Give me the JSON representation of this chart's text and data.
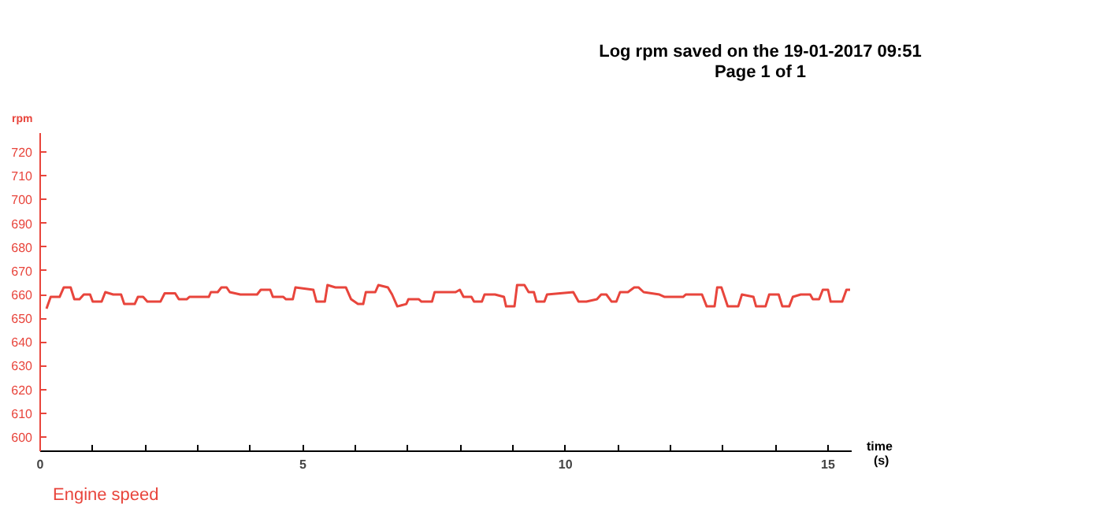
{
  "chart_data": {
    "type": "line",
    "title": "Log rpm saved on the 19-01-2017 09:51",
    "subtitle": "Page 1 of 1",
    "xlabel": "time (s)",
    "ylabel": "rpm",
    "xlim": [
      0,
      15.45
    ],
    "ylim": [
      594,
      728
    ],
    "xticks": [
      0,
      {
        "value": 1,
        "label": null
      },
      {
        "value": 2,
        "label": null
      },
      {
        "value": 3,
        "label": null
      },
      {
        "value": 4,
        "label": null
      },
      5,
      {
        "value": 6,
        "label": null
      },
      {
        "value": 7,
        "label": null
      },
      {
        "value": 8,
        "label": null
      },
      {
        "value": 9,
        "label": null
      },
      10,
      {
        "value": 11,
        "label": null
      },
      {
        "value": 12,
        "label": null
      },
      {
        "value": 13,
        "label": null
      },
      {
        "value": 14,
        "label": null
      },
      15
    ],
    "yticks": [
      600,
      610,
      620,
      630,
      640,
      650,
      660,
      670,
      680,
      690,
      700,
      710,
      720
    ],
    "grid": false,
    "legend": "bottom left",
    "marker": "none",
    "line_style": "solid",
    "series": [
      {
        "name": "Engine speed",
        "color": "#e8453c",
        "x": [
          0.12,
          0.2,
          0.37,
          0.45,
          0.58,
          0.65,
          0.75,
          0.83,
          0.95,
          1.0,
          1.17,
          1.24,
          1.39,
          1.54,
          1.6,
          1.8,
          1.86,
          1.96,
          2.04,
          2.29,
          2.37,
          2.57,
          2.64,
          2.79,
          2.84,
          3.21,
          3.25,
          3.38,
          3.45,
          3.55,
          3.61,
          3.81,
          4.13,
          4.2,
          4.38,
          4.43,
          4.63,
          4.68,
          4.81,
          4.86,
          5.2,
          5.26,
          5.42,
          5.47,
          5.62,
          5.82,
          5.92,
          6.05,
          6.15,
          6.2,
          6.38,
          6.44,
          6.62,
          6.7,
          6.8,
          6.97,
          7.01,
          7.21,
          7.26,
          7.46,
          7.51,
          7.91,
          7.99,
          8.06,
          8.21,
          8.26,
          8.41,
          8.46,
          8.66,
          8.83,
          8.87,
          9.03,
          9.08,
          9.22,
          9.3,
          9.4,
          9.45,
          9.6,
          9.65,
          10.15,
          10.25,
          10.4,
          10.6,
          10.68,
          10.78,
          10.88,
          10.97,
          11.04,
          11.19,
          11.31,
          11.39,
          11.49,
          11.79,
          11.89,
          12.24,
          12.29,
          12.6,
          12.69,
          12.84,
          12.89,
          12.97,
          13.09,
          13.29,
          13.36,
          13.58,
          13.63,
          13.81,
          13.88,
          14.06,
          14.13,
          14.26,
          14.33,
          14.48,
          14.66,
          14.71,
          14.83,
          14.9,
          15.0,
          15.05,
          15.27,
          15.35,
          15.42
        ],
        "values": [
          654,
          659,
          659,
          663,
          663,
          658,
          658,
          660,
          660,
          657,
          657,
          661,
          660,
          660,
          656,
          656,
          659,
          659,
          657,
          657,
          660.5,
          660.5,
          658,
          658,
          659,
          659,
          661,
          661,
          663,
          663,
          661,
          660,
          660,
          662,
          662,
          659,
          659,
          658,
          658,
          663,
          662,
          657,
          657,
          664,
          663,
          663,
          658,
          656,
          656,
          661,
          661,
          664,
          663,
          660,
          655,
          656,
          658,
          658,
          657,
          657,
          661,
          661,
          662,
          659,
          659,
          657,
          657,
          660,
          660,
          659,
          655,
          655,
          664,
          664,
          661,
          661,
          657,
          657,
          660,
          661,
          657,
          657,
          658,
          660,
          660,
          657,
          657,
          661,
          661,
          663,
          663,
          661,
          660,
          659,
          659,
          660,
          660,
          655,
          655,
          663,
          663,
          655,
          655,
          660,
          659,
          655,
          655,
          660,
          660,
          655,
          655,
          659,
          660,
          660,
          658,
          658,
          662,
          662,
          657,
          657,
          662,
          662
        ]
      }
    ]
  }
}
